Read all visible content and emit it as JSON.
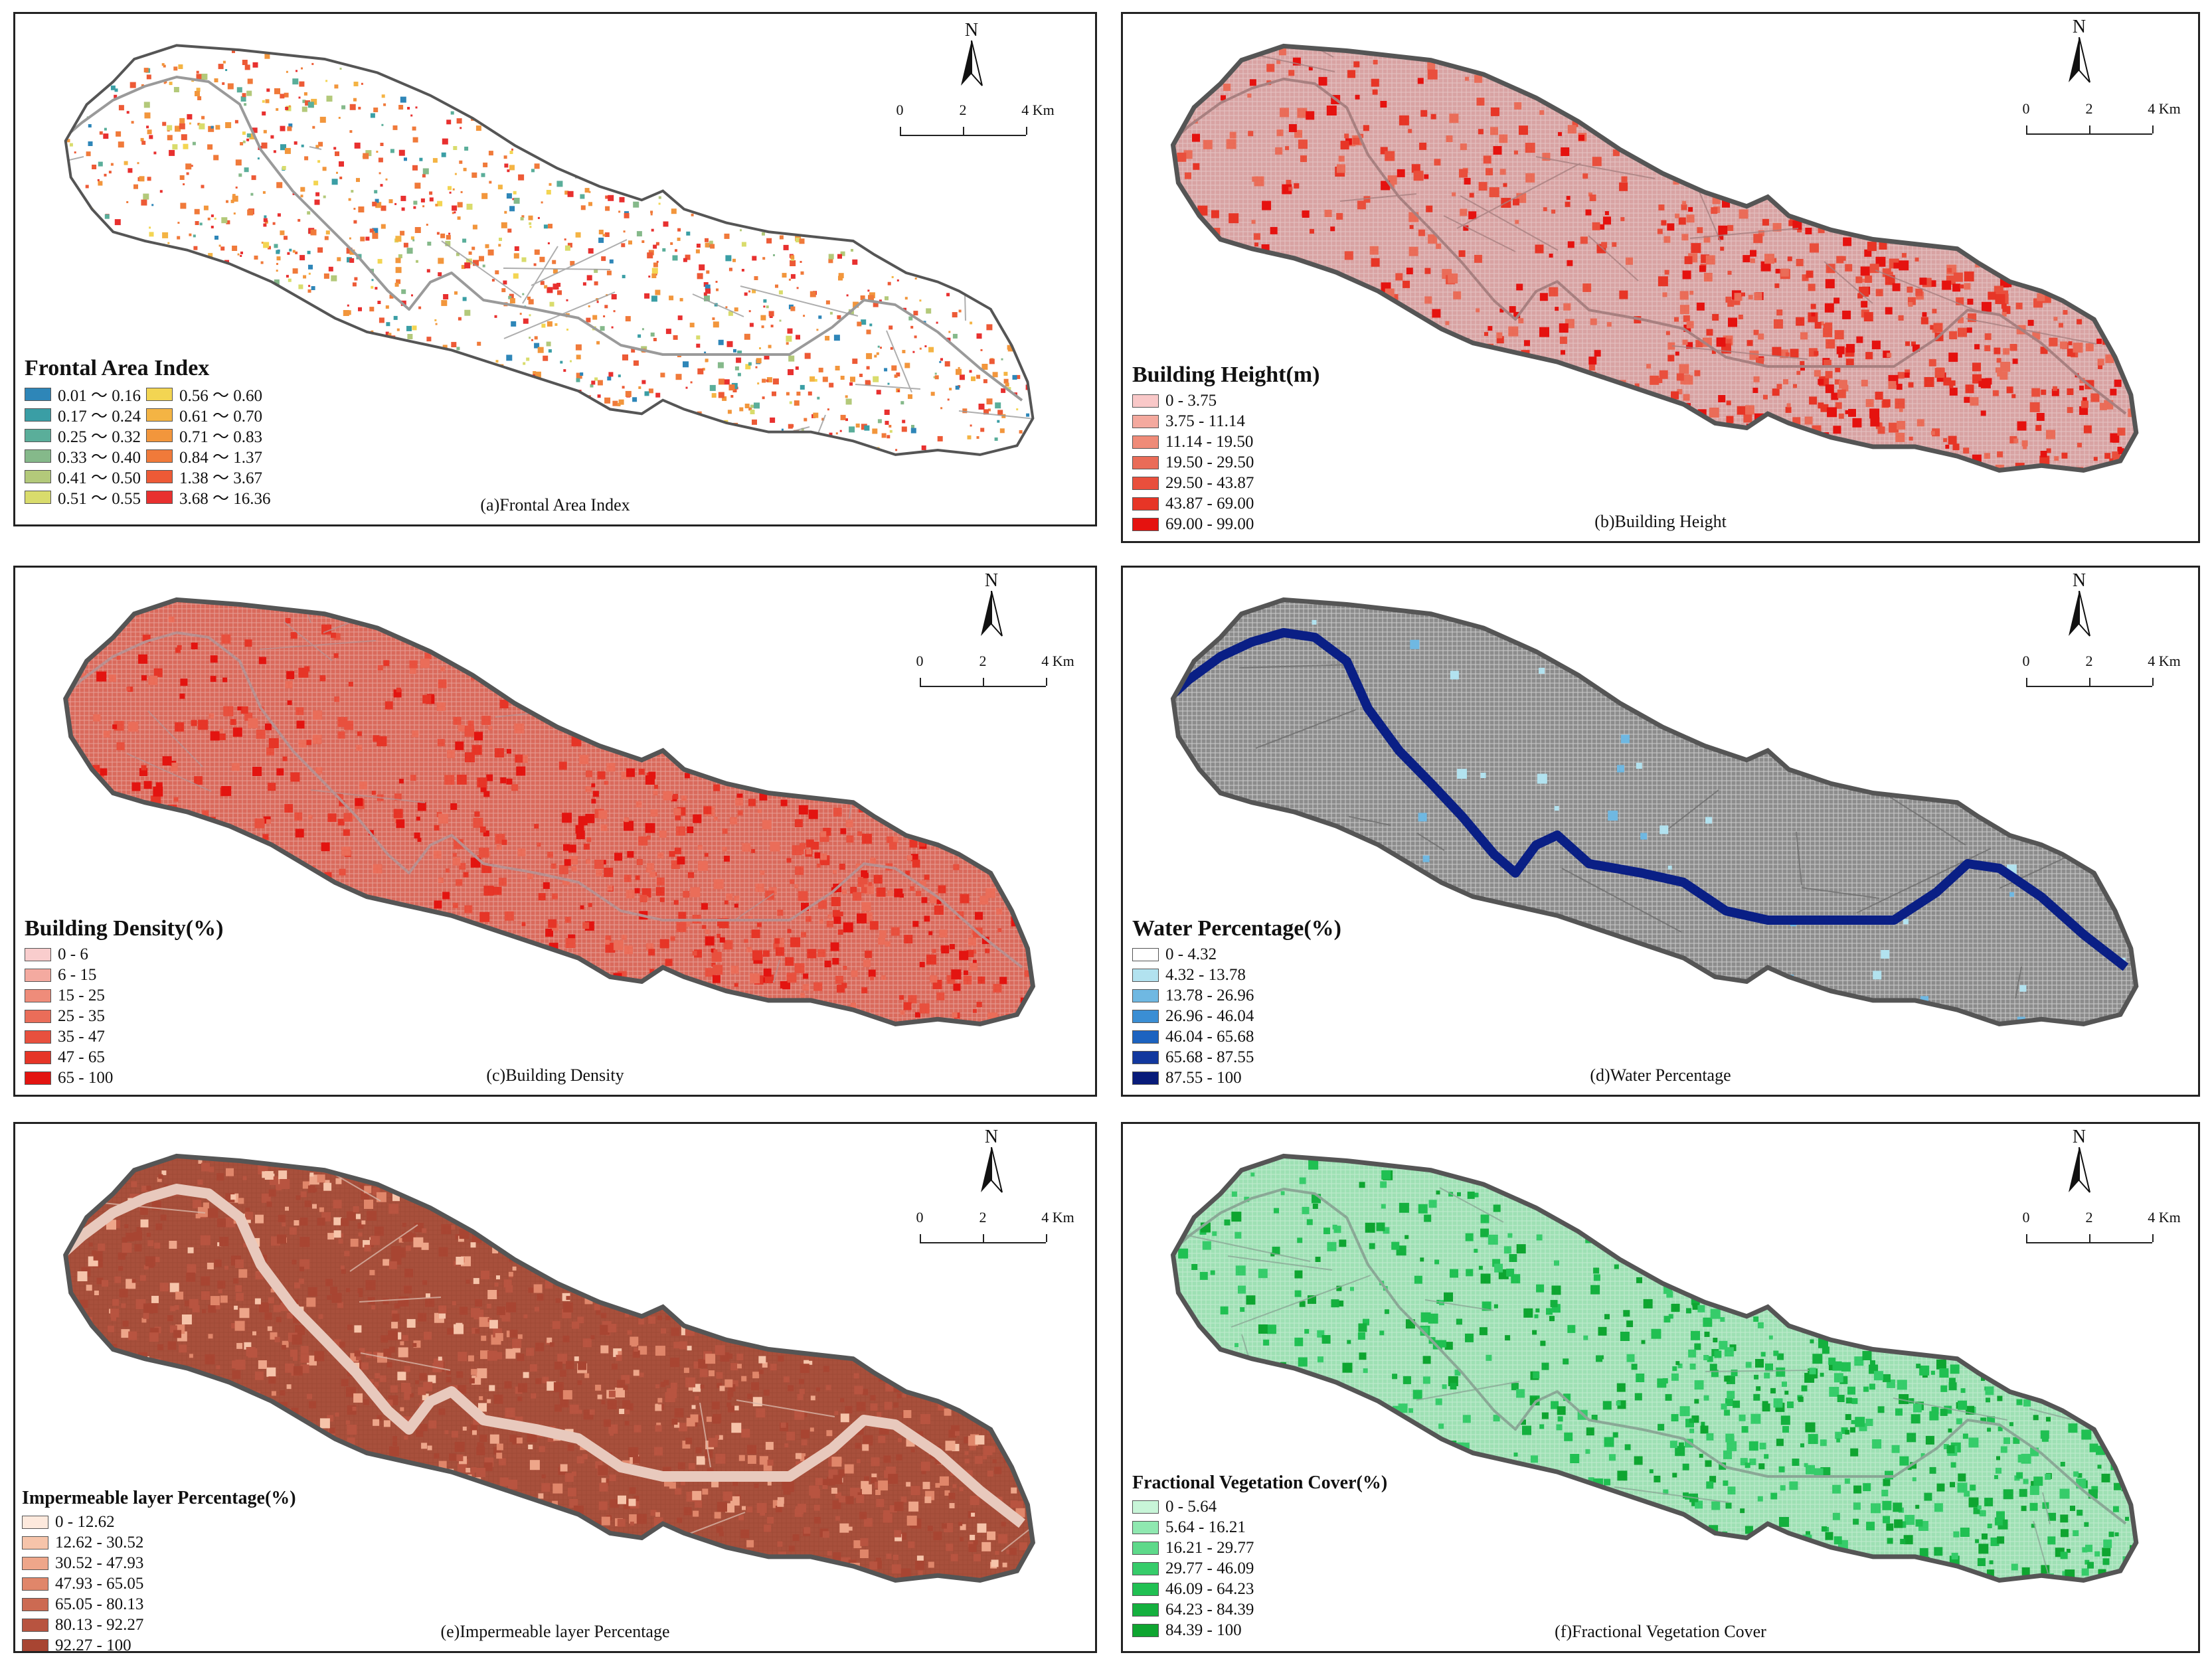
{
  "north_label": "N",
  "scale": {
    "ticks": [
      "0",
      "2",
      "4 Km"
    ]
  },
  "panels": [
    {
      "id": "a",
      "caption": "(a)Frontal Area Index",
      "legend_title": "Frontal Area Index",
      "legend_items": [
        {
          "label": "0.01 ～ 0.16",
          "color": "#2e86b8"
        },
        {
          "label": "0.17 ～ 0.24",
          "color": "#3a9ea5"
        },
        {
          "label": "0.25 ～ 0.32",
          "color": "#5aae9a"
        },
        {
          "label": "0.33 ～ 0.40",
          "color": "#85b98a"
        },
        {
          "label": "0.41 ～ 0.50",
          "color": "#b3c97a"
        },
        {
          "label": "0.51 ～ 0.55",
          "color": "#d9dc6c"
        },
        {
          "label": "0.56 ～ 0.60",
          "color": "#f3d552"
        },
        {
          "label": "0.61 ～ 0.70",
          "color": "#f4b444"
        },
        {
          "label": "0.71 ～ 0.83",
          "color": "#f2963c"
        },
        {
          "label": "0.84 ～ 1.37",
          "color": "#f07a3a"
        },
        {
          "label": "1.38 ～ 3.67",
          "color": "#ed5a36"
        },
        {
          "label": "3.68 ～ 16.36",
          "color": "#e8302f"
        }
      ],
      "fill": "#ffffff",
      "texture": "#e88a80",
      "line": "#9a9a9a"
    },
    {
      "id": "b",
      "caption": "(b)Building Height",
      "legend_title": "Building Height(m)",
      "legend_items": [
        {
          "label": "0 - 3.75",
          "color": "#f9c8c8"
        },
        {
          "label": "3.75 - 11.14",
          "color": "#f4a99e"
        },
        {
          "label": "11.14 - 19.50",
          "color": "#ef8b78"
        },
        {
          "label": "19.50 - 29.50",
          "color": "#ea6c58"
        },
        {
          "label": "29.50 - 43.87",
          "color": "#e94f3c"
        },
        {
          "label": "43.87 - 69.00",
          "color": "#e73526"
        },
        {
          "label": "69.00 - 99.00",
          "color": "#e5120f"
        }
      ],
      "fill": "#d8a3a3",
      "texture": "#d9493c",
      "line": "#a88080"
    },
    {
      "id": "c",
      "caption": "(c)Building Density",
      "legend_title": "Building Density(%)",
      "legend_items": [
        {
          "label": "0 - 6",
          "color": "#f9cdcd"
        },
        {
          "label": "6 - 15",
          "color": "#f4aaa0"
        },
        {
          "label": "15 - 25",
          "color": "#ef8c7a"
        },
        {
          "label": "25 - 35",
          "color": "#ea6d59"
        },
        {
          "label": "35 - 47",
          "color": "#e8503e"
        },
        {
          "label": "47 - 65",
          "color": "#e63527"
        },
        {
          "label": "65 - 100",
          "color": "#e31410"
        }
      ],
      "fill": "#d96a5c",
      "texture": "#c93a2e",
      "line": "#b99090"
    },
    {
      "id": "d",
      "caption": "(d)Water Percentage",
      "legend_title": "Water Percentage(%)",
      "legend_items": [
        {
          "label": "0 - 4.32",
          "color": "#ffffff"
        },
        {
          "label": "4.32 - 13.78",
          "color": "#b2e2ef"
        },
        {
          "label": "13.78 - 26.96",
          "color": "#6fb8e2"
        },
        {
          "label": "26.96 - 46.04",
          "color": "#3a8ed4"
        },
        {
          "label": "46.04 - 65.68",
          "color": "#1c63c0"
        },
        {
          "label": "65.68 - 87.55",
          "color": "#12389e"
        },
        {
          "label": "87.55 - 100",
          "color": "#081b7a"
        }
      ],
      "fill": "#8c8c8c",
      "texture": "#12389e",
      "line": "#6e6e6e"
    },
    {
      "id": "e",
      "caption": "(e)Impermeable layer Percentage",
      "legend_title": "Impermeable layer Percentage(%)",
      "legend_items": [
        {
          "label": "0 - 12.62",
          "color": "#fde9dd"
        },
        {
          "label": "12.62 - 30.52",
          "color": "#f6c4aa"
        },
        {
          "label": "30.52 - 47.93",
          "color": "#eea68a"
        },
        {
          "label": "47.93 - 65.05",
          "color": "#e0866a"
        },
        {
          "label": "65.05 - 80.13",
          "color": "#cc6a52"
        },
        {
          "label": "80.13 - 92.27",
          "color": "#b85440"
        },
        {
          "label": "92.27 - 100",
          "color": "#a84532"
        }
      ],
      "fill": "#a8503c",
      "texture": "#d8b0a0",
      "line": "#d8b5a8"
    },
    {
      "id": "f",
      "caption": "(f)Fractional Vegetation Cover",
      "legend_title": "Fractional Vegetation Cover(%)",
      "legend_items": [
        {
          "label": "0 - 5.64",
          "color": "#c8f5d8"
        },
        {
          "label": "5.64 - 16.21",
          "color": "#8fe8b0"
        },
        {
          "label": "16.21 - 29.77",
          "color": "#5ed98a"
        },
        {
          "label": "29.77 - 46.09",
          "color": "#36cc6a"
        },
        {
          "label": "46.09 - 64.23",
          "color": "#20c052"
        },
        {
          "label": "64.23 - 84.39",
          "color": "#14b03e"
        },
        {
          "label": "84.39 - 100",
          "color": "#0ea530"
        }
      ],
      "fill": "#9ee0b4",
      "texture": "#1cb53c",
      "line": "#8aa896"
    }
  ]
}
